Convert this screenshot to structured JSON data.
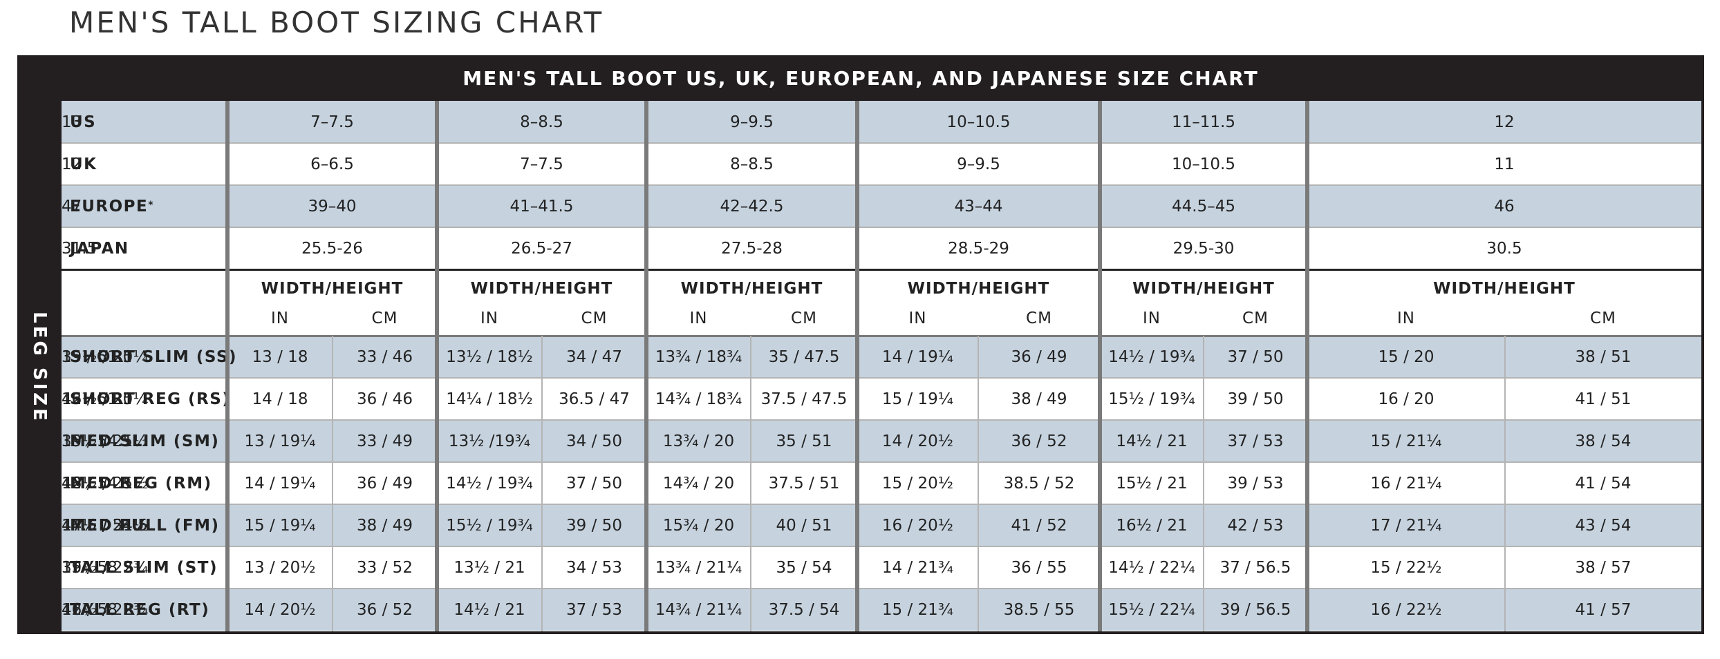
{
  "page_title": "MEN'S TALL BOOT SIZING CHART",
  "table_header": "MEN'S TALL BOOT US, UK, EUROPEAN, AND JAPANESE SIZE CHART",
  "side_label": "LEG SIZE",
  "size_rows": [
    {
      "label": "US",
      "values": [
        "7–7.5",
        "8–8.5",
        "9–9.5",
        "10–10.5",
        "11–11.5",
        "12",
        "13"
      ]
    },
    {
      "label": "UK",
      "values": [
        "6–6.5",
        "7–7.5",
        "8–8.5",
        "9–9.5",
        "10–10.5",
        "11",
        "12"
      ]
    },
    {
      "label": "EUROPE",
      "label_mark": "*",
      "values": [
        "39–40",
        "41–41.5",
        "42–42.5",
        "43–44",
        "44.5–45",
        "46",
        "47"
      ]
    },
    {
      "label": "JAPAN",
      "values": [
        "25.5-26",
        "26.5-27",
        "27.5-28",
        "28.5-29",
        "29.5-30",
        "30.5",
        "31.5"
      ]
    }
  ],
  "measure_header": {
    "group_label": "WIDTH/HEIGHT",
    "unit_in": "IN",
    "unit_cm": "CM"
  },
  "leg_rows": [
    {
      "label": "SHORT SLIM (SS)",
      "values": [
        [
          "13 / 18",
          "33 / 46"
        ],
        [
          "13½ / 18½",
          "34 / 47"
        ],
        [
          "13¾ / 18¾",
          "35 / 47.5"
        ],
        [
          "14 / 19¼",
          "36 / 49"
        ],
        [
          "14½ / 19¾",
          "37 / 50"
        ],
        [
          "15 / 20",
          "38 / 51"
        ],
        [
          "15½ / 20¼",
          "39 / 51.5"
        ]
      ]
    },
    {
      "label": "SHORT REG (RS)",
      "values": [
        [
          "14 / 18",
          "36 / 46"
        ],
        [
          "14¼ / 18½",
          "36.5 / 47"
        ],
        [
          "14¾ / 18¾",
          "37.5 / 47.5"
        ],
        [
          "15 / 19¼",
          "38 / 49"
        ],
        [
          "15½ / 19¾",
          "39 / 50"
        ],
        [
          "16 / 20",
          "41 / 51"
        ],
        [
          "16½ / 20¼",
          "42 / 51.5"
        ]
      ]
    },
    {
      "label": "MED SLIM (SM)",
      "values": [
        [
          "13 / 19¼",
          "33 / 49"
        ],
        [
          "13½ /19¾",
          "34 / 50"
        ],
        [
          "13¾ / 20",
          "35 / 51"
        ],
        [
          "14 / 20½",
          "36 / 52"
        ],
        [
          "14½ / 21",
          "37 / 53"
        ],
        [
          "15 / 21¼",
          "38 / 54"
        ],
        [
          "15½ / 21½",
          "39 / 54.5"
        ]
      ]
    },
    {
      "label": "MED REG (RM)",
      "values": [
        [
          "14 / 19¼",
          "36 / 49"
        ],
        [
          "14½ / 19¾",
          "37 / 50"
        ],
        [
          "14¾ / 20",
          "37.5 / 51"
        ],
        [
          "15 / 20½",
          "38.5 / 52"
        ],
        [
          "15½ / 21",
          "39 / 53"
        ],
        [
          "16 / 21¼",
          "41 / 54"
        ],
        [
          "16½ / 21½",
          "42 / 54.5"
        ]
      ]
    },
    {
      "label": "MED FULL (FM)",
      "values": [
        [
          "15 / 19¼",
          "38 / 49"
        ],
        [
          "15½ / 19¾",
          "39 / 50"
        ],
        [
          "15¾ / 20",
          "40 / 51"
        ],
        [
          "16 / 20½",
          "41 / 52"
        ],
        [
          "16½ / 21",
          "42 / 53"
        ],
        [
          "17 / 21¼",
          "43 / 54"
        ],
        [
          "17½ / 21½",
          "44.5 / 54.5"
        ]
      ]
    },
    {
      "label": "TALL SLIM (ST)",
      "values": [
        [
          "13 / 20½",
          "33 / 52"
        ],
        [
          "13½ / 21",
          "34 / 53"
        ],
        [
          "13¾ / 21¼",
          "35 / 54"
        ],
        [
          "14 / 21¾",
          "36 / 55"
        ],
        [
          "14½ / 22¼",
          "37 / 56.5"
        ],
        [
          "15 / 22½",
          "38 / 57"
        ],
        [
          "15½ / 22¾",
          "39 / 58"
        ]
      ]
    },
    {
      "label": "TALL REG (RT)",
      "values": [
        [
          "14 / 20½",
          "36 / 52"
        ],
        [
          "14½ / 21",
          "37 / 53"
        ],
        [
          "14¾ / 21¼",
          "37.5 / 54"
        ],
        [
          "15 / 21¾",
          "38.5 / 55"
        ],
        [
          "15½ / 22¼",
          "39 / 56.5"
        ],
        [
          "16 / 22½",
          "41 / 57"
        ],
        [
          "16½ / 22¾",
          "42 / 58"
        ]
      ]
    }
  ],
  "colors": {
    "frame": "#231f20",
    "row_shade": "#c6d3df",
    "thick_divider": "#7a7a7a",
    "thin_divider": "#b4b4b4"
  }
}
